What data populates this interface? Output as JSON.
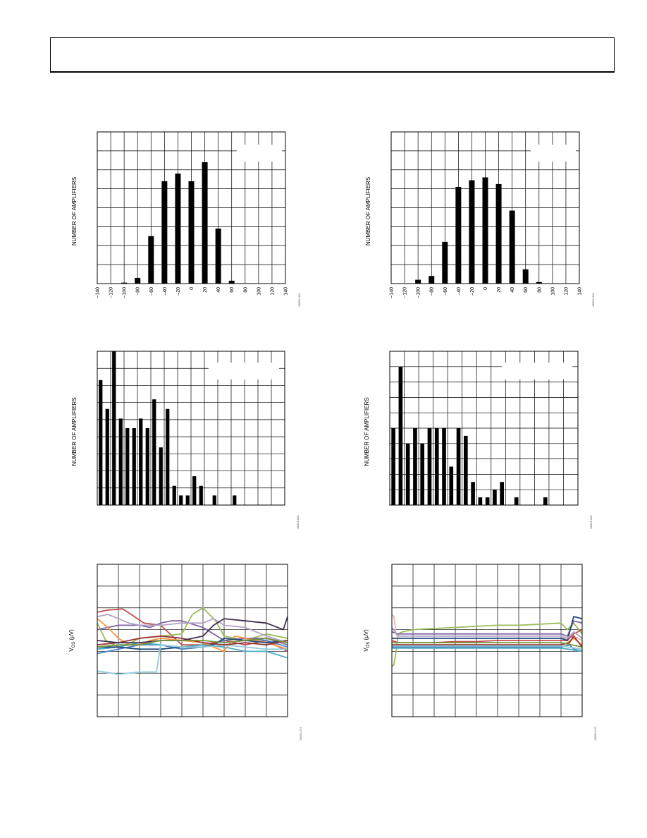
{
  "header": {
    "title": ""
  },
  "chart_data": [
    {
      "id": "c1",
      "type": "bar",
      "ylabel": "NUMBER OF AMPLIFIERS",
      "figure_code": "08394-002",
      "xlim": [
        -140,
        140
      ],
      "xticks": [
        "–140",
        "–120",
        "–100",
        "–80",
        "–60",
        "–40",
        "–20",
        "0",
        "20",
        "40",
        "60",
        "80",
        "100",
        "120",
        "140"
      ],
      "x": [
        -100,
        -80,
        -60,
        -40,
        -20,
        0,
        20,
        40,
        60
      ],
      "values": [
        0.05,
        0.3,
        2.5,
        5.4,
        5.8,
        5.4,
        6.4,
        2.9,
        0.15
      ],
      "ylim": [
        0,
        8
      ]
    },
    {
      "id": "c2",
      "type": "bar",
      "ylabel": "NUMBER OF AMPLIFIERS",
      "figure_code": "08394-003",
      "xlim": [
        -140,
        140
      ],
      "xticks": [
        "–140",
        "–120",
        "–100",
        "–80",
        "–60",
        "–40",
        "–20",
        "0",
        "20",
        "40",
        "60",
        "80",
        "100",
        "120",
        "140"
      ],
      "x": [
        -100,
        -80,
        -60,
        -40,
        -20,
        0,
        20,
        40,
        60,
        80
      ],
      "values": [
        0.2,
        0.4,
        2.2,
        5.1,
        5.45,
        5.6,
        5.25,
        3.85,
        0.75,
        0.08
      ],
      "ylim": [
        0,
        8
      ]
    },
    {
      "id": "c3",
      "type": "bar",
      "ylabel": "NUMBER OF AMPLIFIERS",
      "figure_code": "08394-005",
      "xlim": [
        0,
        28
      ],
      "x": [
        0.5,
        1.5,
        2.5,
        3.5,
        4.5,
        5.5,
        6.5,
        7.5,
        8.5,
        9.5,
        10.5,
        11.5,
        12.5,
        13.5,
        14.5,
        15.5,
        17.5,
        20.5
      ],
      "values": [
        6.5,
        5,
        8,
        4.5,
        4,
        4,
        4.5,
        4,
        5.5,
        3,
        5,
        1,
        0.5,
        0.5,
        1.5,
        1,
        0.5,
        0.5
      ],
      "ylim": [
        0,
        8
      ]
    },
    {
      "id": "c4",
      "type": "bar",
      "ylabel": "NUMBER OF AMPLIFIERS",
      "figure_code": "08394-006",
      "xlim": [
        0,
        26
      ],
      "x": [
        0.5,
        1.5,
        2.5,
        3.5,
        4.5,
        5.5,
        6.5,
        7.5,
        8.5,
        9.5,
        10.5,
        11.5,
        12.5,
        13.5,
        14.5,
        15.5,
        17.5,
        21.5
      ],
      "values": [
        5,
        9,
        4,
        5,
        4,
        5,
        5,
        5,
        2.5,
        5,
        4.5,
        1.5,
        0.5,
        0.5,
        1,
        1.5,
        0.5,
        0.5
      ],
      "ylim": [
        0,
        10
      ]
    },
    {
      "id": "c5",
      "type": "line",
      "ylabel": "V",
      "ylabel_sub": "OS",
      "ylabel_unit": " (µV)",
      "figure_code": "08394-207",
      "xlim": [
        0,
        9
      ],
      "ylim": [
        0,
        7
      ],
      "series": [
        {
          "color": "#c0504d",
          "x": [
            0,
            0.5,
            1.2,
            1.6,
            2.2,
            3,
            4,
            5,
            6,
            7,
            8,
            9
          ],
          "y": [
            4.8,
            4.9,
            4.95,
            4.7,
            4.3,
            4.2,
            3.3,
            3.3,
            3.5,
            3.3,
            3.5,
            3.0
          ]
        },
        {
          "color": "#4f81bd",
          "x": [
            0,
            1,
            2,
            3,
            4,
            5,
            6,
            7,
            8,
            9
          ],
          "y": [
            2.9,
            3.1,
            3.3,
            3.3,
            3.1,
            3.2,
            3.5,
            3.6,
            3.5,
            3.2
          ]
        },
        {
          "color": "#9bbb59",
          "x": [
            0,
            0.4,
            1,
            1.6,
            2,
            3,
            4,
            4.5,
            5,
            5.6,
            6,
            7,
            8,
            9
          ],
          "y": [
            4.3,
            3.5,
            3.2,
            3.4,
            3.6,
            3.7,
            3.8,
            4.7,
            5.0,
            4.4,
            3.7,
            3.5,
            3.8,
            3.6
          ]
        },
        {
          "color": "#8064a2",
          "x": [
            0,
            1,
            2,
            2.5,
            3,
            3.5,
            4,
            5,
            6,
            7,
            8,
            9
          ],
          "y": [
            4.0,
            4.2,
            4.2,
            4.1,
            4.3,
            4.4,
            4.4,
            4.1,
            3.5,
            3.6,
            3.6,
            3.3
          ]
        },
        {
          "color": "#4bacc6",
          "x": [
            0,
            1,
            2,
            3,
            4,
            5,
            6,
            7,
            8,
            9
          ],
          "y": [
            3.1,
            3.2,
            3.4,
            3.3,
            3.2,
            3.3,
            3.2,
            3.0,
            3.0,
            2.7
          ]
        },
        {
          "color": "#f79646",
          "x": [
            0,
            0.5,
            1,
            1.5,
            2,
            2.5,
            3,
            4,
            5,
            6,
            6.5,
            7,
            8,
            9
          ],
          "y": [
            4.5,
            4.1,
            3.6,
            3.3,
            3.3,
            3.5,
            3.6,
            3.5,
            3.4,
            3.0,
            3.7,
            3.6,
            3.4,
            3.1
          ]
        },
        {
          "color": "#1f497d",
          "x": [
            0,
            1,
            2,
            3,
            4,
            5,
            5.5,
            6,
            7,
            8,
            9
          ],
          "y": [
            3.2,
            3.2,
            3.1,
            3.1,
            3.2,
            3.2,
            3.3,
            3.6,
            3.5,
            3.4,
            3.5
          ]
        },
        {
          "color": "#92cddc",
          "x": [
            0,
            1,
            1.5,
            2,
            2.8,
            3,
            4,
            5,
            6,
            7,
            8,
            9
          ],
          "y": [
            2.1,
            1.95,
            2.0,
            2.05,
            2.05,
            3.3,
            3.2,
            3.2,
            3.3,
            3.2,
            3.1,
            3.1
          ]
        },
        {
          "color": "#b3a2c7",
          "x": [
            0,
            0.5,
            1,
            1.5,
            2,
            3,
            4,
            5,
            5.5,
            6,
            7,
            8,
            9
          ],
          "y": [
            4.6,
            4.7,
            4.5,
            4.3,
            4.2,
            4.2,
            4.3,
            4.3,
            4.5,
            4.2,
            4.1,
            3.7,
            3.4
          ]
        },
        {
          "color": "#953735",
          "x": [
            0,
            1,
            2,
            3,
            4,
            5,
            6,
            7,
            8,
            9
          ],
          "y": [
            3.3,
            3.4,
            3.6,
            3.7,
            3.6,
            3.4,
            3.3,
            3.4,
            3.3,
            3.5
          ]
        },
        {
          "color": "#403151",
          "x": [
            0,
            1,
            2,
            3,
            4,
            5,
            5.5,
            6,
            7,
            8,
            8.8,
            9
          ],
          "y": [
            3.5,
            3.4,
            3.4,
            3.5,
            3.5,
            3.7,
            4.2,
            4.5,
            4.4,
            4.3,
            4.0,
            4.6
          ]
        },
        {
          "color": "#77933c",
          "x": [
            0,
            1,
            2,
            3,
            4,
            5,
            6,
            7,
            8,
            9
          ],
          "y": [
            3.2,
            3.3,
            3.3,
            3.5,
            3.5,
            3.5,
            3.4,
            3.5,
            3.6,
            3.4
          ]
        }
      ]
    },
    {
      "id": "c6",
      "type": "line",
      "ylabel": "V",
      "ylabel_sub": "OS",
      "ylabel_unit": " (µV)",
      "figure_code": "08394-210",
      "xlim": [
        0,
        9
      ],
      "ylim": [
        0,
        7
      ],
      "series": [
        {
          "color": "#9bbb59",
          "x": [
            0,
            0.1,
            0.2,
            0.3,
            0.5,
            1,
            2,
            3,
            4,
            5,
            6,
            7,
            8,
            8.3,
            8.6,
            9
          ],
          "y": [
            2.3,
            2.4,
            3.0,
            3.8,
            3.9,
            4.0,
            4.05,
            4.1,
            4.15,
            4.2,
            4.2,
            4.25,
            4.3,
            4.0,
            4.3,
            3.8
          ]
        },
        {
          "color": "#e6b9b8",
          "x": [
            0,
            0.1,
            0.2,
            0.3,
            1,
            2,
            3,
            4,
            5,
            6,
            7,
            8,
            8.3,
            8.6,
            9
          ],
          "y": [
            4.7,
            4.6,
            3.8,
            3.6,
            3.6,
            3.6,
            3.6,
            3.6,
            3.6,
            3.6,
            3.6,
            3.6,
            3.6,
            3.7,
            3.5
          ]
        },
        {
          "color": "#4f81bd",
          "x": [
            0,
            1,
            2,
            3,
            4,
            5,
            6,
            7,
            8,
            8.4,
            8.6,
            9
          ],
          "y": [
            3.2,
            3.2,
            3.2,
            3.2,
            3.2,
            3.2,
            3.2,
            3.2,
            3.2,
            3.3,
            3.1,
            3.0
          ]
        },
        {
          "color": "#8064a2",
          "x": [
            0,
            0.3,
            1,
            2,
            3,
            4,
            5,
            6,
            7,
            8,
            8.3,
            8.6,
            9
          ],
          "y": [
            3.9,
            3.8,
            3.8,
            3.8,
            3.8,
            3.8,
            3.8,
            3.8,
            3.8,
            3.8,
            3.7,
            4.4,
            4.3
          ]
        },
        {
          "color": "#c0504d",
          "x": [
            0,
            0.3,
            1,
            2,
            3,
            4,
            5,
            6,
            7,
            8,
            8.3,
            8.6,
            9
          ],
          "y": [
            3.5,
            3.4,
            3.4,
            3.4,
            3.45,
            3.45,
            3.5,
            3.5,
            3.5,
            3.5,
            3.5,
            3.8,
            4.0
          ]
        },
        {
          "color": "#f79646",
          "x": [
            0,
            0.3,
            1,
            2,
            3,
            4,
            5,
            6,
            7,
            8,
            8.3,
            8.6,
            9
          ],
          "y": [
            3.3,
            3.3,
            3.3,
            3.3,
            3.3,
            3.3,
            3.3,
            3.3,
            3.3,
            3.3,
            3.4,
            3.6,
            3.3
          ]
        },
        {
          "color": "#4bacc6",
          "x": [
            0,
            1,
            2,
            3,
            4,
            5,
            6,
            7,
            8,
            9
          ],
          "y": [
            3.15,
            3.15,
            3.15,
            3.15,
            3.15,
            3.15,
            3.15,
            3.15,
            3.15,
            3.0
          ]
        },
        {
          "color": "#1f497d",
          "x": [
            0,
            0.3,
            1,
            2,
            3,
            4,
            5,
            6,
            7,
            8,
            8.3,
            8.6,
            9
          ],
          "y": [
            3.6,
            3.6,
            3.6,
            3.6,
            3.6,
            3.6,
            3.6,
            3.6,
            3.6,
            3.6,
            3.5,
            4.6,
            4.5
          ]
        },
        {
          "color": "#b3a2c7",
          "x": [
            0,
            0.3,
            1,
            2,
            3,
            4,
            5,
            6,
            7,
            8,
            8.3,
            8.6,
            9
          ],
          "y": [
            4.1,
            3.7,
            3.7,
            3.7,
            3.7,
            3.7,
            3.7,
            3.7,
            3.7,
            3.7,
            3.6,
            3.9,
            3.6
          ]
        },
        {
          "color": "#953735",
          "x": [
            0,
            1,
            2,
            3,
            4,
            5,
            6,
            7,
            8,
            8.4,
            8.6,
            9
          ],
          "y": [
            3.3,
            3.3,
            3.3,
            3.3,
            3.3,
            3.3,
            3.3,
            3.3,
            3.3,
            3.4,
            3.7,
            3.2
          ]
        },
        {
          "color": "#77933c",
          "x": [
            0,
            1,
            2,
            3,
            4,
            5,
            6,
            7,
            8,
            9
          ],
          "y": [
            3.4,
            3.4,
            3.4,
            3.4,
            3.4,
            3.4,
            3.4,
            3.4,
            3.4,
            3.2
          ]
        },
        {
          "color": "#92cddc",
          "x": [
            0,
            1,
            2,
            3,
            4,
            5,
            6,
            7,
            8,
            9
          ],
          "y": [
            3.25,
            3.25,
            3.25,
            3.25,
            3.25,
            3.25,
            3.25,
            3.25,
            3.25,
            3.1
          ]
        }
      ]
    }
  ]
}
